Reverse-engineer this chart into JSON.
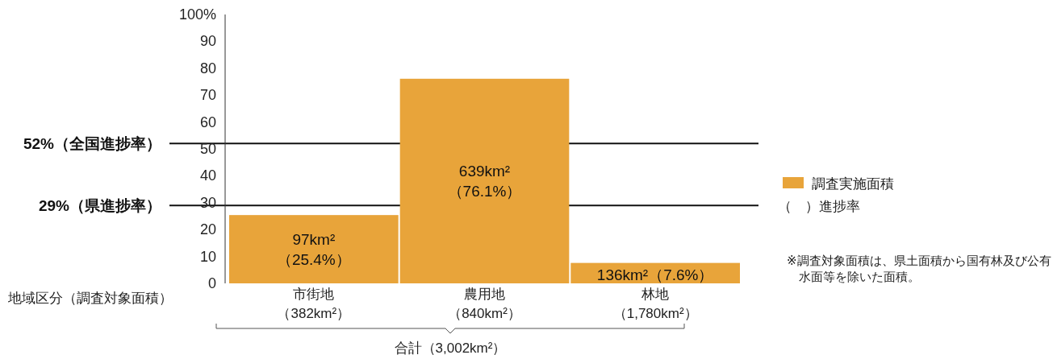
{
  "chart_data": {
    "type": "bar",
    "categories": [
      "市街地（382km²）",
      "農用地（840km²）",
      "林地（1,780km²）"
    ],
    "series": [
      {
        "name": "調査実施面積",
        "color": "#e8a43a",
        "values": [
          25.4,
          76.1,
          7.6
        ],
        "value_labels": [
          "97km²\n（25.4%）",
          "639km²\n（76.1%）",
          "136km²（7.6%）"
        ]
      }
    ],
    "ylim": [
      0,
      100
    ],
    "yticks": [
      0,
      10,
      20,
      30,
      40,
      50,
      60,
      70,
      80,
      90,
      {
        "value": 100,
        "label": "100%"
      }
    ],
    "ref_lines": [
      {
        "axis": "y",
        "value": 52,
        "label": "52%（全国進捗率）",
        "color": "#111111"
      },
      {
        "axis": "y",
        "value": 29,
        "label": "29%（県進捗率）",
        "color": "#111111"
      }
    ],
    "annotations": [
      "地域区分（調査対象面積）",
      "合計（3,002km²）",
      "（　）進捗率",
      "※調査対象面積は、県土面積から国有林及び公有水面等を除いた面積。"
    ],
    "legend": "right"
  }
}
